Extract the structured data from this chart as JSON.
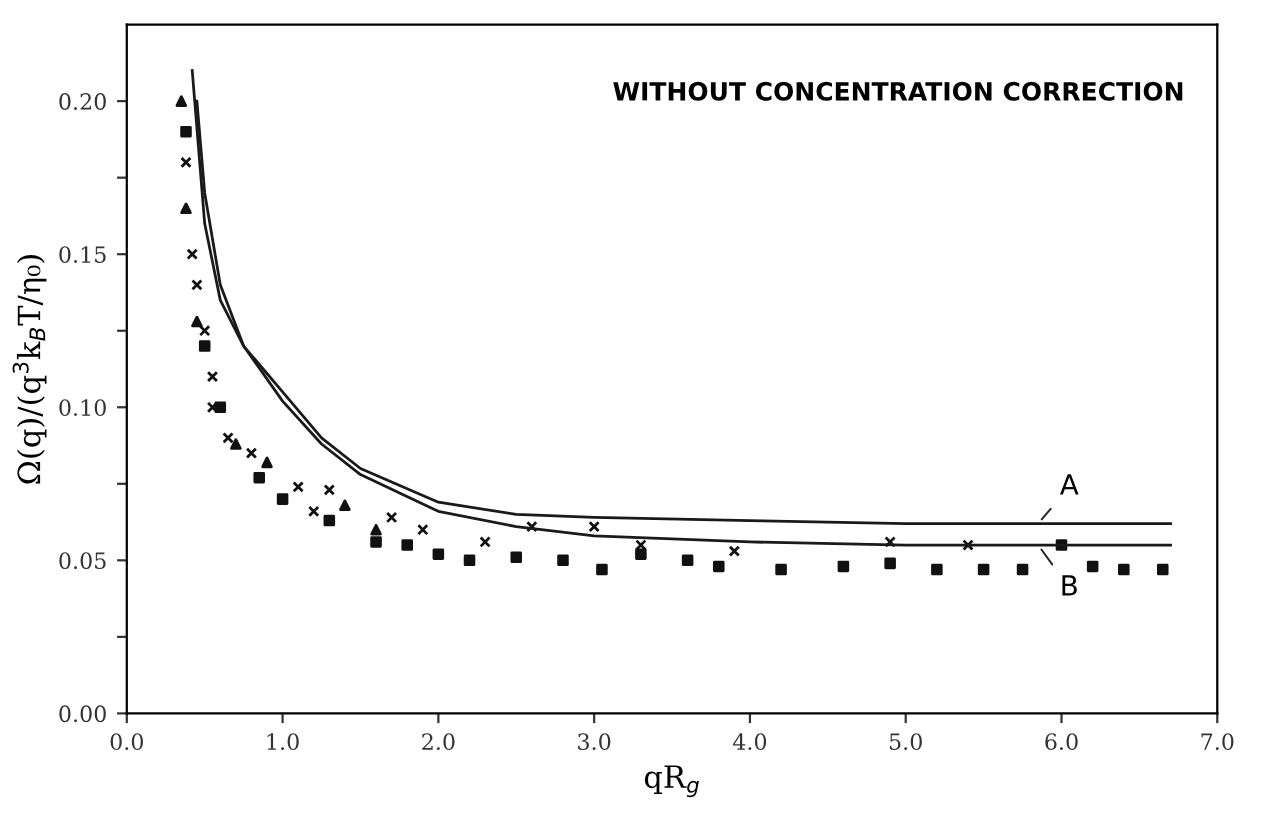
{
  "chart_data": {
    "type": "scatter",
    "xlabel": "qR$_{g}$",
    "ylabel": "Ω(q)/(q$^{3}$k$_{B}$T/η₀)",
    "annotations": [
      "WITHOUT CONCENTRATION CORRECTION",
      {
        "text": "A",
        "x": 5.85,
        "y": 0.062
      },
      {
        "text": "B",
        "x": 5.85,
        "y": 0.055
      }
    ],
    "xlim": [
      0,
      7
    ],
    "ylim": [
      0,
      0.225
    ],
    "xticks": [
      {
        "value": 0,
        "label": "0.0"
      },
      {
        "value": 1,
        "label": "1.0"
      },
      {
        "value": 2,
        "label": "2.0"
      },
      {
        "value": 3,
        "label": "3.0"
      },
      {
        "value": 4,
        "label": "4.0"
      },
      {
        "value": 5,
        "label": "5.0"
      },
      {
        "value": 6,
        "label": "6.0"
      },
      {
        "value": 7,
        "label": "7.0"
      }
    ],
    "yticks": [
      {
        "value": 0,
        "label": "0.00"
      },
      {
        "value": 0.025,
        "label": null
      },
      {
        "value": 0.05,
        "label": "0.05"
      },
      {
        "value": 0.075,
        "label": null
      },
      {
        "value": 0.1,
        "label": "0.10"
      },
      {
        "value": 0.125,
        "label": null
      },
      {
        "value": 0.15,
        "label": "0.15"
      },
      {
        "value": 0.175,
        "label": null
      },
      {
        "value": 0.2,
        "label": "0.20"
      }
    ],
    "grid": false,
    "legend": false,
    "series": [
      {
        "type": "line",
        "color": "#1a1a1a",
        "marker": "none",
        "line_style": "solid",
        "x": [
          0.42,
          0.5,
          0.6,
          0.75,
          1.0,
          1.25,
          1.5,
          2.0,
          2.5,
          3.0,
          4.0,
          5.0,
          5.8,
          6.7
        ],
        "values": [
          0.21,
          0.16,
          0.135,
          0.12,
          0.105,
          0.09,
          0.08,
          0.069,
          0.065,
          0.064,
          0.063,
          0.062,
          0.062,
          0.062
        ]
      },
      {
        "type": "line",
        "color": "#1a1a1a",
        "marker": "none",
        "line_style": "solid",
        "x": [
          0.45,
          0.5,
          0.6,
          0.75,
          1.0,
          1.25,
          1.5,
          2.0,
          2.5,
          3.0,
          4.0,
          5.0,
          6.7
        ],
        "values": [
          0.2,
          0.17,
          0.14,
          0.12,
          0.102,
          0.088,
          0.078,
          0.066,
          0.061,
          0.058,
          0.056,
          0.055,
          0.055
        ]
      },
      {
        "color": "#111111",
        "marker": "triangle",
        "x": [
          0.35,
          0.38,
          0.45,
          0.7,
          0.9,
          1.4,
          1.6
        ],
        "values": [
          0.2,
          0.165,
          0.128,
          0.088,
          0.082,
          0.068,
          0.06
        ]
      },
      {
        "color": "#111111",
        "marker": "cross",
        "x": [
          0.38,
          0.42,
          0.45,
          0.5,
          0.55,
          0.55,
          0.65,
          0.8,
          1.1,
          1.2,
          1.3,
          1.7,
          1.9,
          2.3,
          2.6,
          3.0,
          3.3,
          3.9,
          4.9,
          5.4
        ],
        "values": [
          0.18,
          0.15,
          0.14,
          0.125,
          0.11,
          0.1,
          0.09,
          0.085,
          0.074,
          0.066,
          0.073,
          0.064,
          0.06,
          0.056,
          0.061,
          0.061,
          0.055,
          0.053,
          0.056,
          0.055
        ]
      },
      {
        "color": "#111111",
        "marker": "square",
        "x": [
          0.38,
          0.5,
          0.6,
          0.85,
          1.0,
          1.3,
          1.6,
          1.8,
          2.0,
          2.2,
          2.5,
          2.8,
          3.05,
          3.3,
          3.6,
          3.8,
          4.2,
          4.6,
          4.9,
          5.2,
          5.5,
          5.75,
          6.0,
          6.2,
          6.4,
          6.65
        ],
        "values": [
          0.19,
          0.12,
          0.1,
          0.077,
          0.07,
          0.063,
          0.056,
          0.055,
          0.052,
          0.05,
          0.051,
          0.05,
          0.047,
          0.052,
          0.05,
          0.048,
          0.047,
          0.048,
          0.049,
          0.047,
          0.047,
          0.047,
          0.055,
          0.048,
          0.047,
          0.047
        ]
      }
    ]
  }
}
